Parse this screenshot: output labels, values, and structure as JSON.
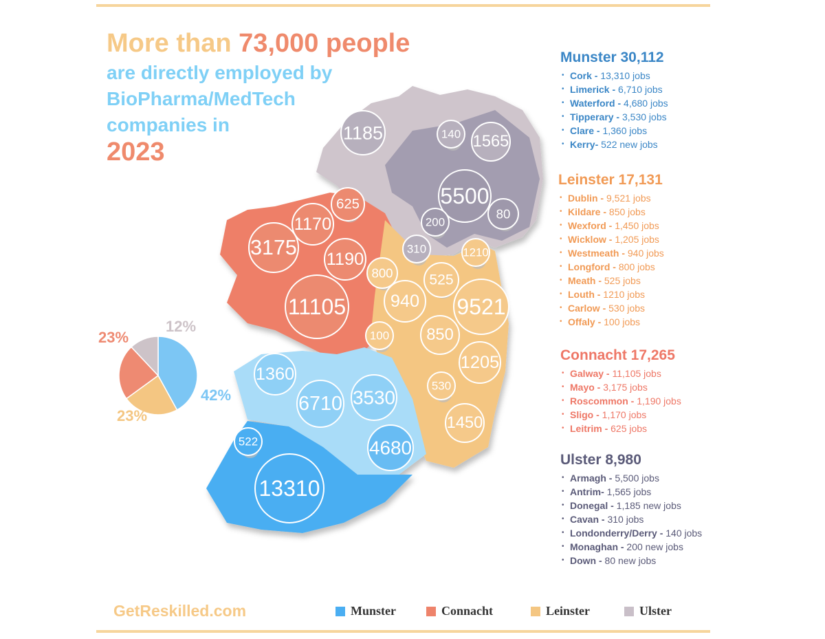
{
  "headline": {
    "line1_a": "More than ",
    "line1_b": "73,000 people",
    "line2": "are directly employed by",
    "line3": "BioPharma/MedTech",
    "line4": "companies in",
    "year": "2023"
  },
  "colors": {
    "munster": "#4aaef2",
    "connacht": "#ee836b",
    "leinster": "#f4c682",
    "ulster": "#c9bfc8",
    "ulster_dark": "#a29cb0"
  },
  "provinces": [
    {
      "title": "Munster 30,112",
      "color": "#3a86c6",
      "items": [
        {
          "name": "Cork -",
          "value": " 13,310 jobs"
        },
        {
          "name": "Limerick -",
          "value": " 6,710 jobs"
        },
        {
          "name": "Waterford -",
          "value": " 4,680 jobs"
        },
        {
          "name": "Tipperary -",
          "value": " 3,530 jobs"
        },
        {
          "name": "Clare -",
          "value": " 1,360 jobs"
        },
        {
          "name": "Kerry-",
          "value": " 522 new jobs"
        }
      ]
    },
    {
      "title": "Leinster 17,131",
      "color": "#f19a55",
      "items": [
        {
          "name": "Dublin -",
          "value": " 9,521 jobs"
        },
        {
          "name": "Kildare -",
          "value": " 850 jobs"
        },
        {
          "name": "Wexford -",
          "value": " 1,450 jobs"
        },
        {
          "name": "Wicklow -",
          "value": " 1,205 jobs"
        },
        {
          "name": "Westmeath -",
          "value": " 940 jobs"
        },
        {
          "name": "Longford -",
          "value": " 800 jobs"
        },
        {
          "name": "Meath -",
          "value": " 525 jobs"
        },
        {
          "name": "Louth -",
          "value": " 1210 jobs"
        },
        {
          "name": "Carlow -",
          "value": " 530 jobs"
        },
        {
          "name": "Offaly -",
          "value": " 100 jobs"
        }
      ]
    },
    {
      "title": "Connacht 17,265",
      "color": "#ee7766",
      "items": [
        {
          "name": "Galway -",
          "value": " 11,105 jobs"
        },
        {
          "name": "Mayo -",
          "value": " 3,175 jobs"
        },
        {
          "name": "Roscommon -",
          "value": " 1,190 jobs"
        },
        {
          "name": "Sligo -",
          "value": " 1,170 jobs"
        },
        {
          "name": "Leitrim -",
          "value": " 625 jobs"
        }
      ]
    },
    {
      "title": "Ulster 8,980",
      "color": "#5a5a78",
      "items": [
        {
          "name": "Armagh -",
          "value": " 5,500 jobs"
        },
        {
          "name": "Antrim-",
          "value": " 1,565 jobs"
        },
        {
          "name": "Donegal -",
          "value": " 1,185 new jobs"
        },
        {
          "name": "Cavan -",
          "value": " 310 jobs"
        },
        {
          "name": "Londonderry/Derry -",
          "value": " 140 jobs"
        },
        {
          "name": "Monaghan -",
          "value": " 200 new jobs"
        },
        {
          "name": "Down -",
          "value": " 80 new jobs"
        }
      ]
    }
  ],
  "map_bubbles": [
    {
      "label": "1185",
      "province": "ulster"
    },
    {
      "label": "140",
      "province": "ulster"
    },
    {
      "label": "1565",
      "province": "ulster"
    },
    {
      "label": "5500",
      "province": "ulster"
    },
    {
      "label": "80",
      "province": "ulster"
    },
    {
      "label": "200",
      "province": "ulster"
    },
    {
      "label": "310",
      "province": "ulster"
    },
    {
      "label": "1210",
      "province": "leinster"
    },
    {
      "label": "625",
      "province": "connacht"
    },
    {
      "label": "1170",
      "province": "connacht"
    },
    {
      "label": "3175",
      "province": "connacht"
    },
    {
      "label": "1190",
      "province": "connacht"
    },
    {
      "label": "800",
      "province": "leinster"
    },
    {
      "label": "525",
      "province": "leinster"
    },
    {
      "label": "11105",
      "province": "connacht"
    },
    {
      "label": "940",
      "province": "leinster"
    },
    {
      "label": "9521",
      "province": "leinster"
    },
    {
      "label": "100",
      "province": "leinster"
    },
    {
      "label": "850",
      "province": "leinster"
    },
    {
      "label": "1205",
      "province": "leinster"
    },
    {
      "label": "1360",
      "province": "munster"
    },
    {
      "label": "6710",
      "province": "munster"
    },
    {
      "label": "3530",
      "province": "munster"
    },
    {
      "label": "530",
      "province": "leinster"
    },
    {
      "label": "1450",
      "province": "leinster"
    },
    {
      "label": "522",
      "province": "munster"
    },
    {
      "label": "4680",
      "province": "munster"
    },
    {
      "label": "13310",
      "province": "munster"
    }
  ],
  "chart_data": {
    "type": "pie",
    "slices": [
      {
        "name": "Munster",
        "value": 42,
        "label": "42%",
        "color": "#7cc6f4"
      },
      {
        "name": "Leinster",
        "value": 23,
        "label": "23%",
        "color": "#f4c682"
      },
      {
        "name": "Connacht",
        "value": 23,
        "label": "23%",
        "color": "#ee8a72"
      },
      {
        "name": "Ulster",
        "value": 12,
        "label": "12%",
        "color": "#cdc3c8"
      }
    ]
  },
  "footer": {
    "site": "GetReskilled.com"
  },
  "legend": [
    {
      "label": "Munster",
      "color": "#4aaef2"
    },
    {
      "label": "Connacht",
      "color": "#ee836b"
    },
    {
      "label": "Leinster",
      "color": "#f4c682"
    },
    {
      "label": "Ulster",
      "color": "#c9bfc8"
    }
  ]
}
